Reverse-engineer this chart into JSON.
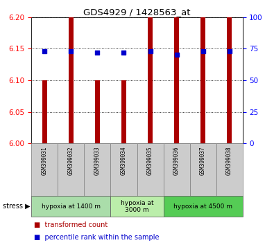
{
  "title": "GDS4929 / 1428563_at",
  "samples": [
    "GSM399031",
    "GSM399032",
    "GSM399033",
    "GSM399034",
    "GSM399035",
    "GSM399036",
    "GSM399037",
    "GSM399038"
  ],
  "bar_bottoms": [
    6.0,
    6.0,
    6.0,
    6.0,
    6.0,
    6.0,
    6.0,
    6.0
  ],
  "bar_tops": [
    6.1,
    6.2,
    6.1,
    6.1,
    6.2,
    6.2,
    6.2,
    6.2
  ],
  "percentile_ranks": [
    73,
    73,
    72,
    72,
    73,
    70,
    73,
    73
  ],
  "ylim": [
    6.0,
    6.2
  ],
  "yticks_left": [
    6.0,
    6.05,
    6.1,
    6.15,
    6.2
  ],
  "yticks_right": [
    0,
    25,
    50,
    75,
    100
  ],
  "bar_color": "#aa0000",
  "dot_color": "#0000cc",
  "sample_bg_color": "#cccccc",
  "groups": [
    {
      "label": "hypoxia at 1400 m",
      "start": 0,
      "end": 3,
      "color": "#aaddaa"
    },
    {
      "label": "hypoxia at\n3000 m",
      "start": 3,
      "end": 5,
      "color": "#bbeeaa"
    },
    {
      "label": "hypoxia at 4500 m",
      "start": 5,
      "end": 8,
      "color": "#55cc55"
    }
  ],
  "bar_width": 0.18
}
